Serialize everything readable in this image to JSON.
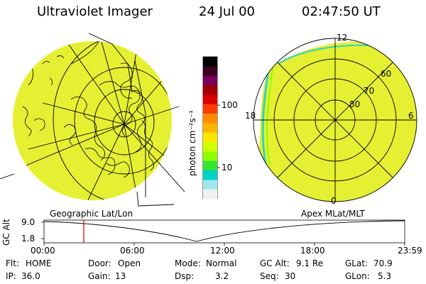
{
  "header": {
    "title": "Ultraviolet Imager",
    "date": "24 Jul 00",
    "time": "02:47:50 UT"
  },
  "colorbar": {
    "unit_label": "photon cm⁻²s⁻¹",
    "ticks": [
      "100",
      "10"
    ],
    "colors": [
      "#000000",
      "#3a0020",
      "#78005a",
      "#a00000",
      "#dc0000",
      "#ff3c00",
      "#ff8c00",
      "#ffb400",
      "#ffe600",
      "#d2ff00",
      "#8cff00",
      "#32e632",
      "#00d2c8",
      "#a0e6f0",
      "#f0f0f0"
    ]
  },
  "left_map": {
    "projection_label": "Geographic Lat/Lon",
    "fill_color": "#e6f032"
  },
  "right_map": {
    "projection_label": "Apex MLat/MLT",
    "mlt_labels": {
      "top": "12",
      "left": "18",
      "right": "6",
      "bottom": "0"
    },
    "lat_labels": [
      "60",
      "70",
      "80"
    ],
    "fill_color": "#e6f032"
  },
  "timeline": {
    "y_axis_label": "GC Alt",
    "y_ticks": [
      "9.0",
      "1.8"
    ],
    "x_ticks": [
      "00:00",
      "06:00",
      "12:00",
      "18:00",
      "23:59"
    ],
    "current_time_color": "#cc0000"
  },
  "status": {
    "filter_label": "Flt:",
    "filter_value": "HOME",
    "door_label": "Door:",
    "door_value": "Open",
    "mode_label": "Mode:",
    "mode_value": "Normal",
    "gcalt_label": "GC Alt:",
    "gcalt_value": "9.1 Re",
    "glat_label": "GLat:",
    "glat_value": "70.9",
    "ip_label": "IP:",
    "ip_value": "36.0",
    "gain_label": "Gain:",
    "gain_value": "13",
    "dsp_label": "Dsp:",
    "dsp_value": "3.2",
    "seq_label": "Seq:",
    "seq_value": "30",
    "glon_label": "GLon:",
    "glon_value": "5.3"
  }
}
